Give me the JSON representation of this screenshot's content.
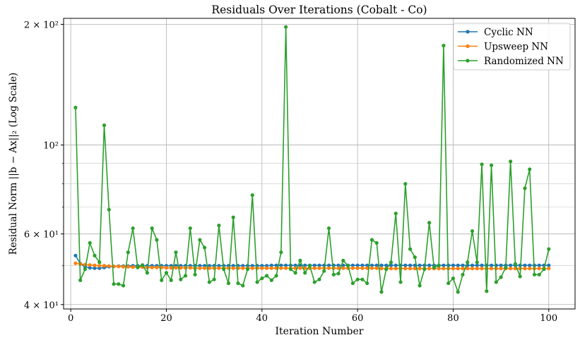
{
  "chart_data": {
    "type": "line",
    "title": "Residuals Over Iterations (Cobalt - Co)",
    "xlabel": "Iteration Number",
    "ylabel": "Residual Norm ||b − Ax||₂ (Log Scale)",
    "xlim": [
      -1.5,
      105.5
    ],
    "ylim": [
      39,
      207
    ],
    "yscale": "log",
    "grid": true,
    "legend": "top-right",
    "x_ticks": [
      0,
      20,
      40,
      60,
      80,
      100
    ],
    "y_ticks": [
      {
        "value": 40,
        "label": "4 × 10¹"
      },
      {
        "value": 60,
        "label": "6 × 10¹"
      },
      {
        "value": 100,
        "label": "10²"
      },
      {
        "value": 200,
        "label": "2 × 10²"
      }
    ],
    "y_minor_grid": [
      50,
      70,
      80,
      90
    ],
    "x": [
      1,
      2,
      3,
      4,
      5,
      6,
      7,
      8,
      9,
      10,
      11,
      12,
      13,
      14,
      15,
      16,
      17,
      18,
      19,
      20,
      21,
      22,
      23,
      24,
      25,
      26,
      27,
      28,
      29,
      30,
      31,
      32,
      33,
      34,
      35,
      36,
      37,
      38,
      39,
      40,
      41,
      42,
      43,
      44,
      45,
      46,
      47,
      48,
      49,
      50,
      51,
      52,
      53,
      54,
      55,
      56,
      57,
      58,
      59,
      60,
      61,
      62,
      63,
      64,
      65,
      66,
      67,
      68,
      69,
      70,
      71,
      72,
      73,
      74,
      75,
      76,
      77,
      78,
      79,
      80,
      81,
      82,
      83,
      84,
      85,
      86,
      87,
      88,
      89,
      90,
      91,
      92,
      93,
      94,
      95,
      96,
      97,
      98,
      99,
      100
    ],
    "series": [
      {
        "name": "Cyclic NN",
        "color": "#1f77b4",
        "values": [
          53.0,
          50.6,
          49.7,
          49.4,
          49.3,
          49.3,
          49.5,
          49.7,
          49.8,
          49.9,
          49.9,
          49.9,
          50.0,
          50.0,
          50.0,
          50.0,
          50.0,
          50.0,
          50.0,
          50.0,
          50.0,
          50.0,
          50.0,
          50.0,
          50.0,
          50.0,
          50.0,
          50.0,
          50.0,
          50.0,
          50.0,
          50.0,
          50.0,
          50.0,
          50.0,
          50.0,
          50.0,
          50.0,
          50.0,
          50.0,
          50.0,
          50.1,
          50.1,
          50.1,
          50.1,
          50.1,
          50.1,
          50.1,
          50.1,
          50.1,
          50.1,
          50.1,
          50.1,
          50.1,
          50.1,
          50.1,
          50.1,
          50.1,
          50.1,
          50.1,
          50.1,
          50.1,
          50.1,
          50.1,
          50.1,
          50.1,
          50.1,
          50.1,
          50.1,
          50.1,
          50.1,
          50.1,
          50.1,
          50.1,
          50.1,
          50.1,
          50.1,
          50.1,
          50.1,
          50.1,
          50.1,
          50.1,
          50.1,
          50.1,
          50.1,
          50.1,
          50.1,
          50.1,
          50.1,
          50.1,
          50.1,
          50.1,
          50.1,
          50.1,
          50.1,
          50.1,
          50.1,
          50.1,
          50.1,
          50.1
        ]
      },
      {
        "name": "Upsweep NN",
        "color": "#ff7f0e",
        "values": [
          50.7,
          50.5,
          50.3,
          50.2,
          50.1,
          50.0,
          50.0,
          49.9,
          49.8,
          49.8,
          49.7,
          49.7,
          49.6,
          49.6,
          49.6,
          49.5,
          49.5,
          49.5,
          49.5,
          49.4,
          49.4,
          49.4,
          49.4,
          49.4,
          49.4,
          49.3,
          49.3,
          49.3,
          49.3,
          49.3,
          49.3,
          49.3,
          49.3,
          49.3,
          49.3,
          49.3,
          49.3,
          49.3,
          49.3,
          49.3,
          49.3,
          49.3,
          49.3,
          49.3,
          49.3,
          49.3,
          49.3,
          49.3,
          49.3,
          49.3,
          49.3,
          49.3,
          49.3,
          49.3,
          49.3,
          49.3,
          49.3,
          49.3,
          49.3,
          49.3,
          49.3,
          49.3,
          49.3,
          49.3,
          49.2,
          49.2,
          49.2,
          49.2,
          49.2,
          49.2,
          49.2,
          49.2,
          49.2,
          49.2,
          49.2,
          49.2,
          49.2,
          49.2,
          49.2,
          49.2,
          49.2,
          49.2,
          49.2,
          49.2,
          49.2,
          49.2,
          49.2,
          49.2,
          49.2,
          49.2,
          49.2,
          49.2,
          49.2,
          49.2,
          49.2,
          49.2,
          49.2,
          49.2,
          49.2,
          49.2
        ]
      },
      {
        "name": "Randomized NN",
        "color": "#2ca02c",
        "values": [
          124,
          46,
          49,
          57,
          53,
          51,
          112,
          69,
          45,
          45,
          44.6,
          54,
          62,
          49.5,
          50.2,
          48,
          62,
          58,
          46,
          48,
          46,
          54,
          46.2,
          47.2,
          62,
          47.5,
          58,
          55.5,
          45.5,
          46.2,
          63,
          49,
          45.2,
          66,
          45.2,
          44.6,
          49,
          75,
          45.5,
          46.5,
          47.2,
          46,
          47.2,
          54,
          197,
          49,
          48,
          51.5,
          48,
          50,
          45.5,
          46.2,
          48.5,
          62,
          47.5,
          47.8,
          51.5,
          50,
          45.2,
          46.2,
          46.2,
          45.2,
          58,
          57,
          43,
          49,
          51,
          67.5,
          45.5,
          80,
          55,
          52.5,
          44.6,
          49,
          64,
          49.5,
          50,
          177,
          45.2,
          46.5,
          43,
          47.5,
          51,
          61,
          51,
          89.5,
          43.2,
          89,
          45.5,
          46.8,
          49.5,
          91,
          50.5,
          47,
          78,
          87,
          47.5,
          47.5,
          49,
          55
        ]
      }
    ]
  }
}
